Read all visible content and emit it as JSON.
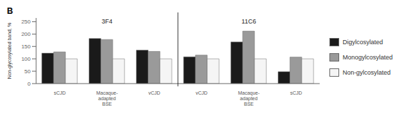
{
  "chart_data": {
    "type": "bar",
    "title": "B",
    "categories": [
      "sCJD",
      "Macaque-\nadapted\nBSE",
      "vCJD",
      "vCJD",
      "Macaque-\nadapted\nBSE",
      "sCJD"
    ],
    "series": [
      {
        "name": "Digylcosylated",
        "color": "#1a1a1a",
        "values": [
          123,
          182,
          135,
          108,
          168,
          48
        ]
      },
      {
        "name": "Monogylcosylated",
        "color": "#9a9a9a",
        "values": [
          128,
          178,
          130,
          115,
          212,
          107
        ]
      },
      {
        "name": "Non-gylcosylated",
        "color": "#f5f5f5",
        "values": [
          100,
          100,
          100,
          100,
          100,
          100
        ]
      }
    ],
    "ylabel": "Non-glycosylated band, %",
    "ylim": [
      0,
      265
    ],
    "yticks": [
      0,
      50,
      100,
      150,
      200,
      250
    ],
    "annotations": [
      "3F4",
      "11C6"
    ],
    "legend": "right"
  }
}
